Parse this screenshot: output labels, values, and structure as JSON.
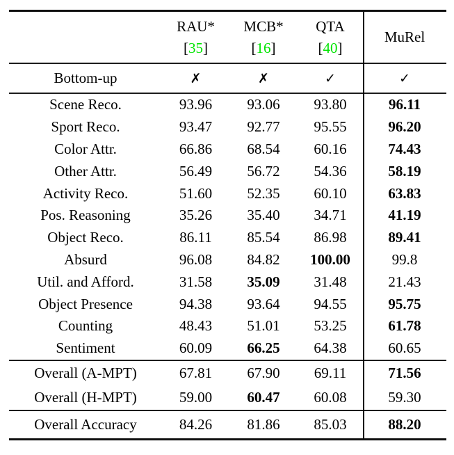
{
  "colors": {
    "background": "#ffffff",
    "text": "#000000",
    "rule": "#1c1c1c",
    "citation_green": "#00e400"
  },
  "header": {
    "columns": [
      {
        "name": "RAU*",
        "bracket_open": "[",
        "citation": "35",
        "bracket_close": "]"
      },
      {
        "name": "MCB*",
        "bracket_open": "[",
        "citation": "16",
        "bracket_close": "]"
      },
      {
        "name": "QTA",
        "bracket_open": "[",
        "citation": "40",
        "bracket_close": "]"
      },
      {
        "name": "MuRel",
        "bracket_open": "",
        "citation": "",
        "bracket_close": ""
      }
    ]
  },
  "bottom_up": {
    "label": "Bottom-up",
    "flags": [
      "✗",
      "✗",
      "✓",
      "✓"
    ]
  },
  "sections": [
    {
      "name": "categories",
      "rows": [
        {
          "label": "Scene Reco.",
          "values": [
            {
              "v": "93.96",
              "b": false
            },
            {
              "v": "93.06",
              "b": false
            },
            {
              "v": "93.80",
              "b": false
            },
            {
              "v": "96.11",
              "b": true
            }
          ]
        },
        {
          "label": "Sport Reco.",
          "values": [
            {
              "v": "93.47",
              "b": false
            },
            {
              "v": "92.77",
              "b": false
            },
            {
              "v": "95.55",
              "b": false
            },
            {
              "v": "96.20",
              "b": true
            }
          ]
        },
        {
          "label": "Color Attr.",
          "values": [
            {
              "v": "66.86",
              "b": false
            },
            {
              "v": "68.54",
              "b": false
            },
            {
              "v": "60.16",
              "b": false
            },
            {
              "v": "74.43",
              "b": true
            }
          ]
        },
        {
          "label": "Other Attr.",
          "values": [
            {
              "v": "56.49",
              "b": false
            },
            {
              "v": "56.72",
              "b": false
            },
            {
              "v": "54.36",
              "b": false
            },
            {
              "v": "58.19",
              "b": true
            }
          ]
        },
        {
          "label": "Activity Reco.",
          "values": [
            {
              "v": "51.60",
              "b": false
            },
            {
              "v": "52.35",
              "b": false
            },
            {
              "v": "60.10",
              "b": false
            },
            {
              "v": "63.83",
              "b": true
            }
          ]
        },
        {
          "label": "Pos. Reasoning",
          "values": [
            {
              "v": "35.26",
              "b": false
            },
            {
              "v": "35.40",
              "b": false
            },
            {
              "v": "34.71",
              "b": false
            },
            {
              "v": "41.19",
              "b": true
            }
          ]
        },
        {
          "label": "Object Reco.",
          "values": [
            {
              "v": "86.11",
              "b": false
            },
            {
              "v": "85.54",
              "b": false
            },
            {
              "v": "86.98",
              "b": false
            },
            {
              "v": "89.41",
              "b": true
            }
          ]
        },
        {
          "label": "Absurd",
          "values": [
            {
              "v": "96.08",
              "b": false
            },
            {
              "v": "84.82",
              "b": false
            },
            {
              "v": "100.00",
              "b": true
            },
            {
              "v": "99.8",
              "b": false
            }
          ]
        },
        {
          "label": "Util. and Afford.",
          "values": [
            {
              "v": "31.58",
              "b": false
            },
            {
              "v": "35.09",
              "b": true
            },
            {
              "v": "31.48",
              "b": false
            },
            {
              "v": "21.43",
              "b": false
            }
          ]
        },
        {
          "label": "Object Presence",
          "values": [
            {
              "v": "94.38",
              "b": false
            },
            {
              "v": "93.64",
              "b": false
            },
            {
              "v": "94.55",
              "b": false
            },
            {
              "v": "95.75",
              "b": true
            }
          ]
        },
        {
          "label": "Counting",
          "values": [
            {
              "v": "48.43",
              "b": false
            },
            {
              "v": "51.01",
              "b": false
            },
            {
              "v": "53.25",
              "b": false
            },
            {
              "v": "61.78",
              "b": true
            }
          ]
        },
        {
          "label": "Sentiment",
          "values": [
            {
              "v": "60.09",
              "b": false
            },
            {
              "v": "66.25",
              "b": true
            },
            {
              "v": "64.38",
              "b": false
            },
            {
              "v": "60.65",
              "b": false
            }
          ]
        }
      ]
    },
    {
      "name": "overall-mpt",
      "rows": [
        {
          "label": "Overall (A-MPT)",
          "values": [
            {
              "v": "67.81",
              "b": false
            },
            {
              "v": "67.90",
              "b": false
            },
            {
              "v": "69.11",
              "b": false
            },
            {
              "v": "71.56",
              "b": true
            }
          ]
        },
        {
          "label": "Overall (H-MPT)",
          "values": [
            {
              "v": "59.00",
              "b": false
            },
            {
              "v": "60.47",
              "b": true
            },
            {
              "v": "60.08",
              "b": false
            },
            {
              "v": "59.30",
              "b": false
            }
          ]
        }
      ]
    },
    {
      "name": "overall-accuracy",
      "rows": [
        {
          "label": "Overall Accuracy",
          "values": [
            {
              "v": "84.26",
              "b": false
            },
            {
              "v": "81.86",
              "b": false
            },
            {
              "v": "85.03",
              "b": false
            },
            {
              "v": "88.20",
              "b": true
            }
          ]
        }
      ]
    }
  ]
}
